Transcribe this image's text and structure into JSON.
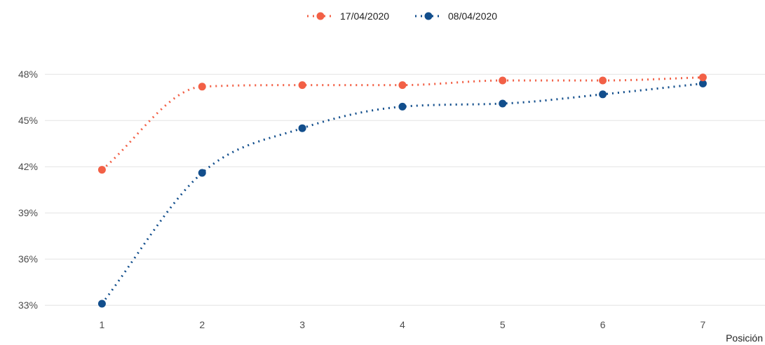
{
  "chart_data": {
    "type": "scatter",
    "x": [
      1,
      2,
      3,
      4,
      5,
      6,
      7
    ],
    "series": [
      {
        "name": "17/04/2020",
        "color": "#f26046",
        "values": [
          41.8,
          47.2,
          47.3,
          47.3,
          47.6,
          47.6,
          47.8
        ]
      },
      {
        "name": "08/04/2020",
        "color": "#124e8c",
        "values": [
          33.1,
          41.6,
          44.5,
          45.9,
          46.1,
          46.7,
          47.4
        ]
      }
    ],
    "trend_style": "dotted smooth curve",
    "xlabel": "Posición",
    "ylabel": "",
    "x_ticks": [
      "1",
      "2",
      "3",
      "4",
      "5",
      "6",
      "7"
    ],
    "y_ticks": [
      "33%",
      "36%",
      "39%",
      "42%",
      "45%",
      "48%"
    ],
    "y_tick_values": [
      33,
      36,
      39,
      42,
      45,
      48
    ],
    "xlim": [
      0.43,
      7.62
    ],
    "ylim": [
      32.6,
      50.1
    ],
    "grid": "horizontal major",
    "legend_position": "top"
  }
}
